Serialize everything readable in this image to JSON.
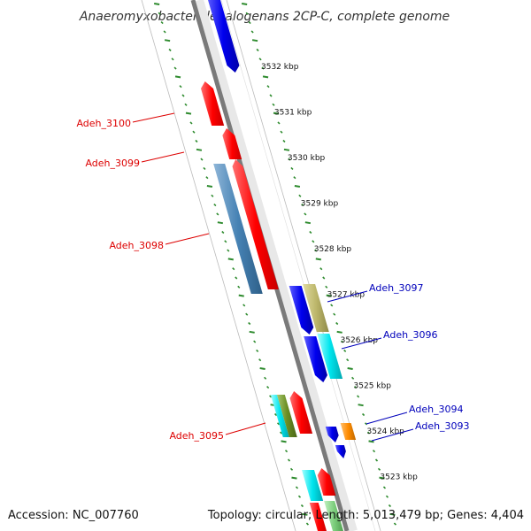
{
  "title": "Anaeromyxobacter dehalogenans 2CP-C, complete genome",
  "footer": {
    "accession": "Accession: NC_007760",
    "summary": "Topology: circular; Length: 5,013,479 bp; Genes: 4,404"
  },
  "scale_labels": [
    "3532 kbp",
    "3531 kbp",
    "3530 kbp",
    "3529 kbp",
    "3528 kbp",
    "3527 kbp",
    "3526 kbp",
    "3525 kbp",
    "3524 kbp",
    "3523 kbp"
  ],
  "gene_labels": [
    {
      "name": "Adeh_3100",
      "strand": "reverse"
    },
    {
      "name": "Adeh_3099",
      "strand": "reverse"
    },
    {
      "name": "Adeh_3098",
      "strand": "reverse"
    },
    {
      "name": "Adeh_3095",
      "strand": "reverse"
    },
    {
      "name": "Adeh_3097",
      "strand": "forward"
    },
    {
      "name": "Adeh_3096",
      "strand": "forward"
    },
    {
      "name": "Adeh_3094",
      "strand": "forward"
    },
    {
      "name": "Adeh_3093",
      "strand": "forward"
    }
  ],
  "colors": {
    "reverse_label": "#dd0000",
    "forward_label": "#0000bb",
    "red_gene": "#ff0000",
    "blue_gene": "#0000ee",
    "steelblue_gene": "#4682b4",
    "khaki_gene": "#bdb76b",
    "cyan_gene": "#00e5ee",
    "orange_gene": "#ff8c00",
    "olive_gene": "#6b8e23",
    "green_gene": "#7ccd7c",
    "backbone": "#808080",
    "dotted_track": "#2e8b2e"
  }
}
